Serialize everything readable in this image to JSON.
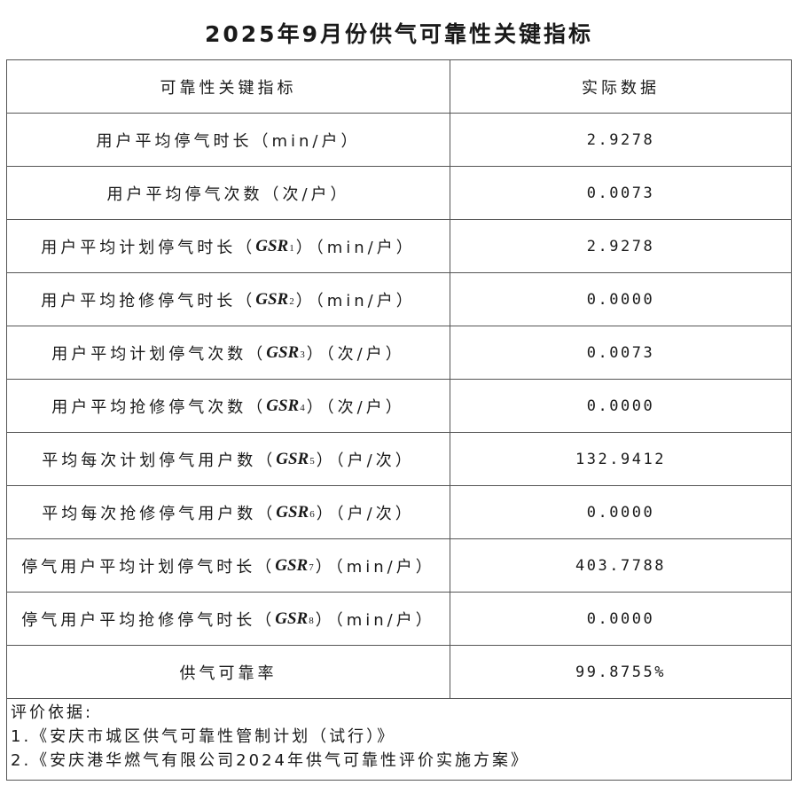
{
  "title": "2025年9月份供气可靠性关键指标",
  "header": {
    "indicator": "可靠性关键指标",
    "value": "实际数据"
  },
  "rows": [
    {
      "prefix": "用户平均停气时长（min/户）",
      "code": "",
      "sub": "",
      "suffix": "",
      "value": "2.9278"
    },
    {
      "prefix": "用户平均停气次数（次/户）",
      "code": "",
      "sub": "",
      "suffix": "",
      "value": "0.0073"
    },
    {
      "prefix": "用户平均计划停气时长（",
      "code": "GSR",
      "sub": "1",
      "suffix": "）（min/户）",
      "value": "2.9278"
    },
    {
      "prefix": "用户平均抢修停气时长（",
      "code": "GSR",
      "sub": "2",
      "suffix": "）（min/户）",
      "value": "0.0000"
    },
    {
      "prefix": "用户平均计划停气次数（",
      "code": "GSR",
      "sub": "3",
      "suffix": "）（次/户）",
      "value": "0.0073"
    },
    {
      "prefix": "用户平均抢修停气次数（",
      "code": "GSR",
      "sub": "4",
      "suffix": "）（次/户）",
      "value": "0.0000"
    },
    {
      "prefix": "平均每次计划停气用户数（",
      "code": "GSR",
      "sub": "5",
      "suffix": "）（户/次）",
      "value": "132.9412"
    },
    {
      "prefix": "平均每次抢修停气用户数（",
      "code": "GSR",
      "sub": "6",
      "suffix": "）（户/次）",
      "value": "0.0000"
    },
    {
      "prefix": "停气用户平均计划停气时长（",
      "code": "GSR",
      "sub": "7",
      "suffix": "）（min/户）",
      "value": "403.7788"
    },
    {
      "prefix": "停气用户平均抢修停气时长（",
      "code": "GSR",
      "sub": "8",
      "suffix": "）（min/户）",
      "value": "0.0000"
    },
    {
      "prefix": "供气可靠率",
      "code": "",
      "sub": "",
      "suffix": "",
      "value": "99.8755%"
    }
  ],
  "footer": {
    "heading": "评价依据:",
    "items": [
      "1.《安庆市城区供气可靠性管制计划（试行）》",
      "2.《安庆港华燃气有限公司2024年供气可靠性评价实施方案》"
    ]
  }
}
